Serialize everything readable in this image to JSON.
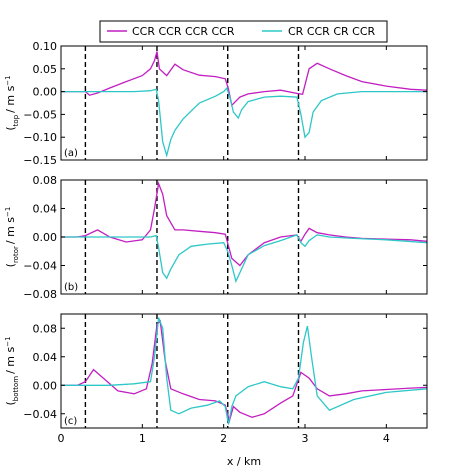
{
  "chart_data": {
    "type": "line",
    "xlabel": "x / km",
    "xlim": [
      0,
      4.5
    ],
    "xticks": [
      "0",
      "1",
      "2",
      "3",
      "4"
    ],
    "vertical_lines_x": [
      0.3,
      1.18,
      2.05,
      2.92
    ],
    "legend": {
      "placement": "top-center",
      "entries": [
        {
          "name": "CCR CCR CCR CCR",
          "color": "#c21fc2"
        },
        {
          "name": "CR CCR CR CCR",
          "color": "#2ec7c7"
        }
      ]
    },
    "panels": [
      {
        "tag": "(a)",
        "ylabel_main": "/ m s",
        "ylabel_sup": "−1",
        "ylabel_sub": "top",
        "ylim": [
          -0.15,
          0.1
        ],
        "yticks": [
          "0.10",
          "0.05",
          "0.00",
          "−0.05",
          "−0.10",
          "−0.15"
        ],
        "series": [
          {
            "name": "CCR CCR CCR CCR",
            "color": "#c21fc2",
            "x": [
              0,
              0.2,
              0.3,
              0.35,
              0.45,
              0.6,
              0.8,
              1.0,
              1.1,
              1.15,
              1.18,
              1.21,
              1.3,
              1.4,
              1.5,
              1.7,
              1.9,
              2.02,
              2.06,
              2.1,
              2.2,
              2.3,
              2.5,
              2.7,
              2.9,
              2.97,
              3.05,
              3.15,
              3.3,
              3.5,
              3.7,
              4.0,
              4.3,
              4.5
            ],
            "y": [
              0,
              0,
              0,
              -0.008,
              -0.003,
              0.008,
              0.022,
              0.035,
              0.05,
              0.068,
              0.088,
              0.05,
              0.035,
              0.06,
              0.048,
              0.036,
              0.033,
              0.028,
              0.005,
              -0.03,
              -0.012,
              -0.005,
              0,
              0.003,
              -0.004,
              -0.006,
              0.05,
              0.062,
              0.05,
              0.035,
              0.022,
              0.012,
              0.005,
              0.003
            ]
          },
          {
            "name": "CR CCR CR CCR",
            "color": "#2ec7c7",
            "x": [
              0,
              0.3,
              0.6,
              0.9,
              1.1,
              1.17,
              1.2,
              1.25,
              1.3,
              1.35,
              1.4,
              1.5,
              1.7,
              1.9,
              2.0,
              2.04,
              2.08,
              2.12,
              2.18,
              2.22,
              2.3,
              2.5,
              2.7,
              2.9,
              2.95,
              3.0,
              3.05,
              3.1,
              3.2,
              3.4,
              3.7,
              4.0,
              4.5
            ],
            "y": [
              0,
              0,
              0,
              0,
              0.002,
              0.005,
              -0.02,
              -0.11,
              -0.14,
              -0.105,
              -0.085,
              -0.06,
              -0.025,
              -0.01,
              0,
              0.008,
              -0.015,
              -0.045,
              -0.058,
              -0.04,
              -0.022,
              -0.012,
              -0.01,
              -0.012,
              -0.05,
              -0.1,
              -0.09,
              -0.045,
              -0.02,
              -0.005,
              0,
              0,
              0
            ]
          }
        ]
      },
      {
        "tag": "(b)",
        "ylabel_main": "/ m s",
        "ylabel_sup": "−1",
        "ylabel_sub": "rotor",
        "ylim": [
          -0.08,
          0.08
        ],
        "yticks": [
          "0.08",
          "0.04",
          "0.00",
          "−0.04",
          "−0.08"
        ],
        "series": [
          {
            "name": "CCR CCR CCR CCR",
            "color": "#c21fc2",
            "x": [
              0,
              0.2,
              0.3,
              0.45,
              0.6,
              0.8,
              1.0,
              1.1,
              1.15,
              1.2,
              1.25,
              1.3,
              1.4,
              1.5,
              1.7,
              1.9,
              2.02,
              2.1,
              2.2,
              2.3,
              2.5,
              2.7,
              2.9,
              2.95,
              3.0,
              3.05,
              3.15,
              3.3,
              3.5,
              3.7,
              4.0,
              4.3,
              4.5
            ],
            "y": [
              0,
              0,
              0.002,
              0.01,
              0.0,
              -0.007,
              -0.004,
              0.01,
              0.04,
              0.075,
              0.06,
              0.03,
              0.01,
              0.01,
              0.008,
              0.006,
              0.004,
              -0.03,
              -0.04,
              -0.025,
              -0.008,
              0.0,
              0.003,
              -0.006,
              0.004,
              0.012,
              0.006,
              0.003,
              0.0,
              -0.002,
              -0.003,
              -0.004,
              -0.006
            ]
          },
          {
            "name": "CR CCR CR CCR",
            "color": "#2ec7c7",
            "x": [
              0,
              0.3,
              0.6,
              0.9,
              1.1,
              1.17,
              1.2,
              1.25,
              1.3,
              1.35,
              1.45,
              1.6,
              1.8,
              2.0,
              2.05,
              2.1,
              2.15,
              2.2,
              2.3,
              2.5,
              2.7,
              2.9,
              2.95,
              3.0,
              3.05,
              3.15,
              3.3,
              3.6,
              4.0,
              4.5
            ],
            "y": [
              0,
              0,
              0,
              0,
              0.0,
              0.002,
              -0.015,
              -0.05,
              -0.058,
              -0.045,
              -0.025,
              -0.013,
              -0.01,
              -0.008,
              -0.02,
              -0.04,
              -0.062,
              -0.05,
              -0.025,
              -0.012,
              -0.005,
              0.003,
              -0.008,
              -0.013,
              -0.005,
              0.003,
              0.0,
              -0.002,
              -0.004,
              -0.008
            ]
          }
        ]
      },
      {
        "tag": "(c)",
        "ylabel_main": "/ m s",
        "ylabel_sup": "−1",
        "ylabel_sub": "bottom",
        "ylim": [
          -0.06,
          0.1
        ],
        "yticks": [
          "0.08",
          "0.04",
          "0.00",
          "−0.04"
        ],
        "series": [
          {
            "name": "CCR CCR CCR CCR",
            "color": "#c21fc2",
            "x": [
              0,
              0.2,
              0.3,
              0.4,
              0.5,
              0.7,
              0.9,
              1.05,
              1.12,
              1.18,
              1.22,
              1.28,
              1.35,
              1.5,
              1.7,
              1.9,
              2.02,
              2.07,
              2.12,
              2.2,
              2.35,
              2.5,
              2.7,
              2.85,
              2.95,
              3.05,
              3.15,
              3.3,
              3.5,
              3.7,
              4.0,
              4.3,
              4.5
            ],
            "y": [
              0,
              0,
              0.005,
              0.022,
              0.012,
              -0.008,
              -0.012,
              -0.005,
              0.03,
              0.085,
              0.09,
              0.035,
              -0.005,
              -0.012,
              -0.02,
              -0.022,
              -0.028,
              -0.05,
              -0.03,
              -0.038,
              -0.045,
              -0.04,
              -0.025,
              -0.015,
              0.018,
              0.01,
              -0.005,
              -0.015,
              -0.012,
              -0.008,
              -0.006,
              -0.004,
              -0.003
            ]
          },
          {
            "name": "CR CCR CR CCR",
            "color": "#2ec7c7",
            "x": [
              0,
              0.3,
              0.6,
              0.9,
              1.1,
              1.15,
              1.2,
              1.25,
              1.3,
              1.35,
              1.45,
              1.6,
              1.8,
              1.95,
              2.02,
              2.06,
              2.1,
              2.15,
              2.3,
              2.5,
              2.7,
              2.85,
              2.92,
              2.98,
              3.03,
              3.08,
              3.15,
              3.3,
              3.6,
              4.0,
              4.5
            ],
            "y": [
              0,
              0,
              0.0,
              0.002,
              0.005,
              0.04,
              0.095,
              0.08,
              0.01,
              -0.035,
              -0.04,
              -0.032,
              -0.028,
              -0.022,
              -0.03,
              -0.055,
              -0.03,
              -0.015,
              -0.002,
              0.005,
              -0.002,
              -0.005,
              0.01,
              0.06,
              0.083,
              0.04,
              -0.015,
              -0.035,
              -0.02,
              -0.01,
              -0.005
            ]
          }
        ]
      }
    ]
  }
}
